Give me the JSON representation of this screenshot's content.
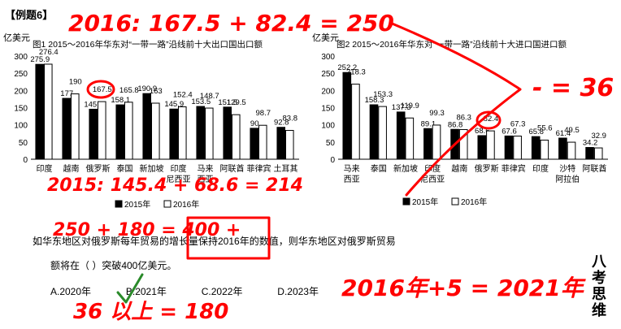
{
  "example_title": "【例题6】",
  "chart_data": [
    {
      "type": "bar",
      "unit_label": "亿美元",
      "title": "图1  2015～2016年华东对“一带一路”沿线前十大出口国出口额",
      "categories": [
        "印度",
        "越南",
        "俄罗斯",
        "泰国",
        "新加坡",
        "印度尼西亚",
        "马来西亚",
        "阿联酋",
        "菲律宾",
        "土耳其"
      ],
      "series": [
        {
          "name": "2015年",
          "color": "#000000",
          "values": [
            275.9,
            177.0,
            145.4,
            158.1,
            190.9,
            145.9,
            153.5,
            151.5,
            90.0,
            92.8
          ]
        },
        {
          "name": "2016年",
          "color": "#ffffff",
          "values": [
            276.4,
            190.0,
            167.5,
            165.8,
            163.0,
            152.4,
            148.7,
            129.5,
            98.7,
            83.8
          ]
        }
      ],
      "ylim": [
        0,
        300
      ],
      "yticks": [
        0,
        50,
        100,
        150,
        200,
        250,
        300
      ],
      "legend_position": "bottom"
    },
    {
      "type": "bar",
      "unit_label": "亿美元",
      "title": "图2  2015～2016年华东对“一带一路”沿线前十大进口国进口额",
      "categories": [
        "马来西亚",
        "泰国",
        "新加坡",
        "印度尼西亚",
        "越南",
        "俄罗斯",
        "菲律宾",
        "印度",
        "沙特阿拉伯",
        "阿联酋"
      ],
      "series": [
        {
          "name": "2015年",
          "color": "#000000",
          "values": [
            252.2,
            158.3,
            137.3,
            89.1,
            86.8,
            68.6,
            67.6,
            65.8,
            61.4,
            34.2
          ]
        },
        {
          "name": "2016年",
          "color": "#ffffff",
          "values": [
            218.3,
            153.3,
            119.9,
            99.3,
            86.3,
            82.4,
            67.3,
            55.6,
            49.5,
            32.9
          ]
        }
      ],
      "ylim": [
        0,
        300
      ],
      "yticks": [
        0,
        50,
        100,
        150,
        200,
        250,
        300
      ],
      "legend_position": "bottom"
    }
  ],
  "question": {
    "line1": "如华东地区对俄罗斯每年贸易的增长量保持2016年的数值，则华东地区对俄罗斯贸易",
    "line2": "额将在（ ）突破400亿美元。",
    "options": [
      "A.2020年",
      "B.2021年",
      "C.2022年",
      "D.2023年"
    ]
  },
  "annotations": {
    "top": "2016: 167.5 + 82.4 = 250",
    "middle": "2015: 145.4 + 68.6 = 214",
    "diff": "- = 36",
    "times": "36 以上 = 180",
    "result": "2016年+5 = 2021年",
    "lower_mid": "250 + 180 = 400 +"
  },
  "watermark": "八考思维"
}
